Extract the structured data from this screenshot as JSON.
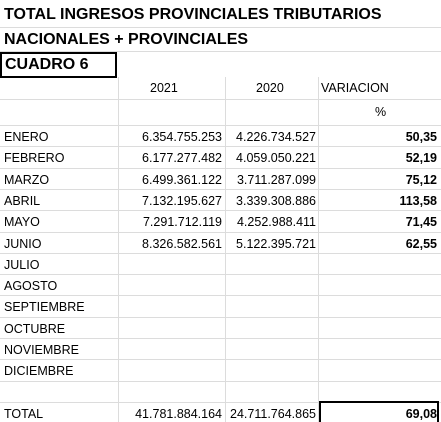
{
  "header": {
    "title_line_1": "TOTAL INGRESOS PROVINCIALES TRIBUTARIOS",
    "title_line_2": "NACIONALES + PROVINCIALES",
    "box_label": "CUADRO 6"
  },
  "table": {
    "columns": [
      "2021",
      "2020",
      "VARIACION"
    ],
    "unit": "%",
    "rows": [
      [
        "ENERO",
        "6.354.755.253",
        "4.226.734.527",
        "50,35"
      ],
      [
        "FEBRERO",
        "6.177.277.482",
        "4.059.050.221",
        "52,19"
      ],
      [
        "MARZO",
        "6.499.361.122",
        "3.711.287.099",
        "75,12"
      ],
      [
        "ABRIL",
        "7.132.195.627",
        "3.339.308.886",
        "113,58"
      ],
      [
        "MAYO",
        "7.291.712.119",
        "4.252.988.411",
        "71,45"
      ],
      [
        "JUNIO",
        "8.326.582.561",
        "5.122.395.721",
        "62,55"
      ],
      [
        "JULIO"
      ],
      [
        "AGOSTO"
      ],
      [
        "SEPTIEMBRE"
      ],
      [
        "OCTUBRE"
      ],
      [
        "NOVIEMBRE"
      ],
      [
        "DICIEMBRE"
      ]
    ],
    "total": [
      "TOTAL",
      "41.781.884.164",
      "24.711.764.865",
      "69,08"
    ]
  }
}
